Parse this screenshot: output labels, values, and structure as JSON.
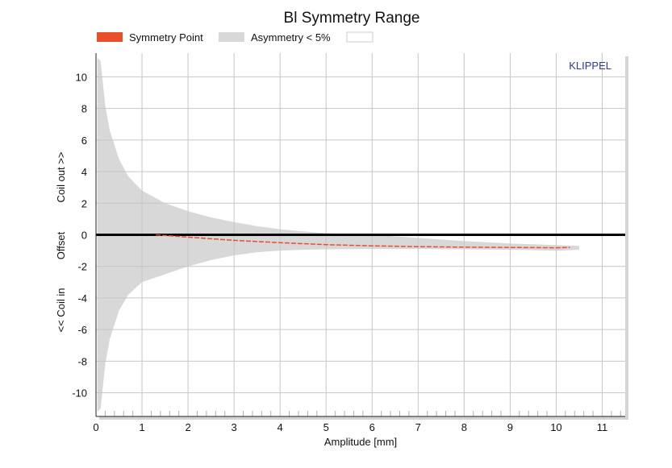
{
  "chart_data": {
    "type": "area",
    "title": "Bl Symmetry Range",
    "xlabel": "Amplitude [mm]",
    "ylabel": {
      "upper": "Coil out >>",
      "middle": "Offset",
      "lower": "<< Coil in"
    },
    "brand": "KLIPPEL",
    "xlim": [
      0,
      11.5
    ],
    "ylim": [
      -11.5,
      11.5
    ],
    "xticks": [
      "0",
      "1",
      "2",
      "3",
      "4",
      "5",
      "6",
      "7",
      "8",
      "9",
      "10",
      "11"
    ],
    "yticks": [
      "10",
      "8",
      "6",
      "4",
      "2",
      "0",
      "-2",
      "-4",
      "-6",
      "-8",
      "-10"
    ],
    "grid": true,
    "legend": {
      "placement": "top",
      "entries": [
        "Symmetry Point",
        "Asymmetry < 5%",
        ""
      ]
    },
    "series": [
      {
        "name": "Symmetry Point",
        "color": "#e8502c",
        "x": [
          1.3,
          2,
          3,
          4,
          5,
          6,
          7,
          8,
          9,
          10,
          10.3
        ],
        "y": [
          0,
          -0.15,
          -0.35,
          -0.5,
          -0.62,
          -0.7,
          -0.75,
          -0.78,
          -0.8,
          -0.82,
          -0.8
        ]
      },
      {
        "name": "Asymmetry < 5%",
        "color": "#d8d8d8",
        "x": [
          0.03,
          0.1,
          0.2,
          0.3,
          0.5,
          0.7,
          1.0,
          1.5,
          2.0,
          2.5,
          3.0,
          3.5,
          4.0,
          4.5,
          5.0,
          6.0,
          7.0,
          8.0,
          9.0,
          10.0,
          10.5
        ],
        "upper": [
          11.2,
          11.0,
          8.2,
          6.6,
          4.8,
          3.7,
          2.8,
          2.0,
          1.5,
          1.1,
          0.8,
          0.55,
          0.35,
          0.22,
          0.1,
          0.0,
          -0.2,
          -0.4,
          -0.55,
          -0.65,
          -0.7
        ],
        "lower": [
          -11.2,
          -11.0,
          -8.2,
          -6.6,
          -4.8,
          -3.8,
          -3.0,
          -2.5,
          -2.0,
          -1.6,
          -1.3,
          -1.1,
          -1.0,
          -0.95,
          -0.92,
          -0.9,
          -0.9,
          -0.92,
          -0.95,
          -1.0,
          -0.95
        ]
      }
    ],
    "swatch_colors": [
      "#e8502c",
      "#d8d8d8",
      "#ffffff"
    ]
  }
}
